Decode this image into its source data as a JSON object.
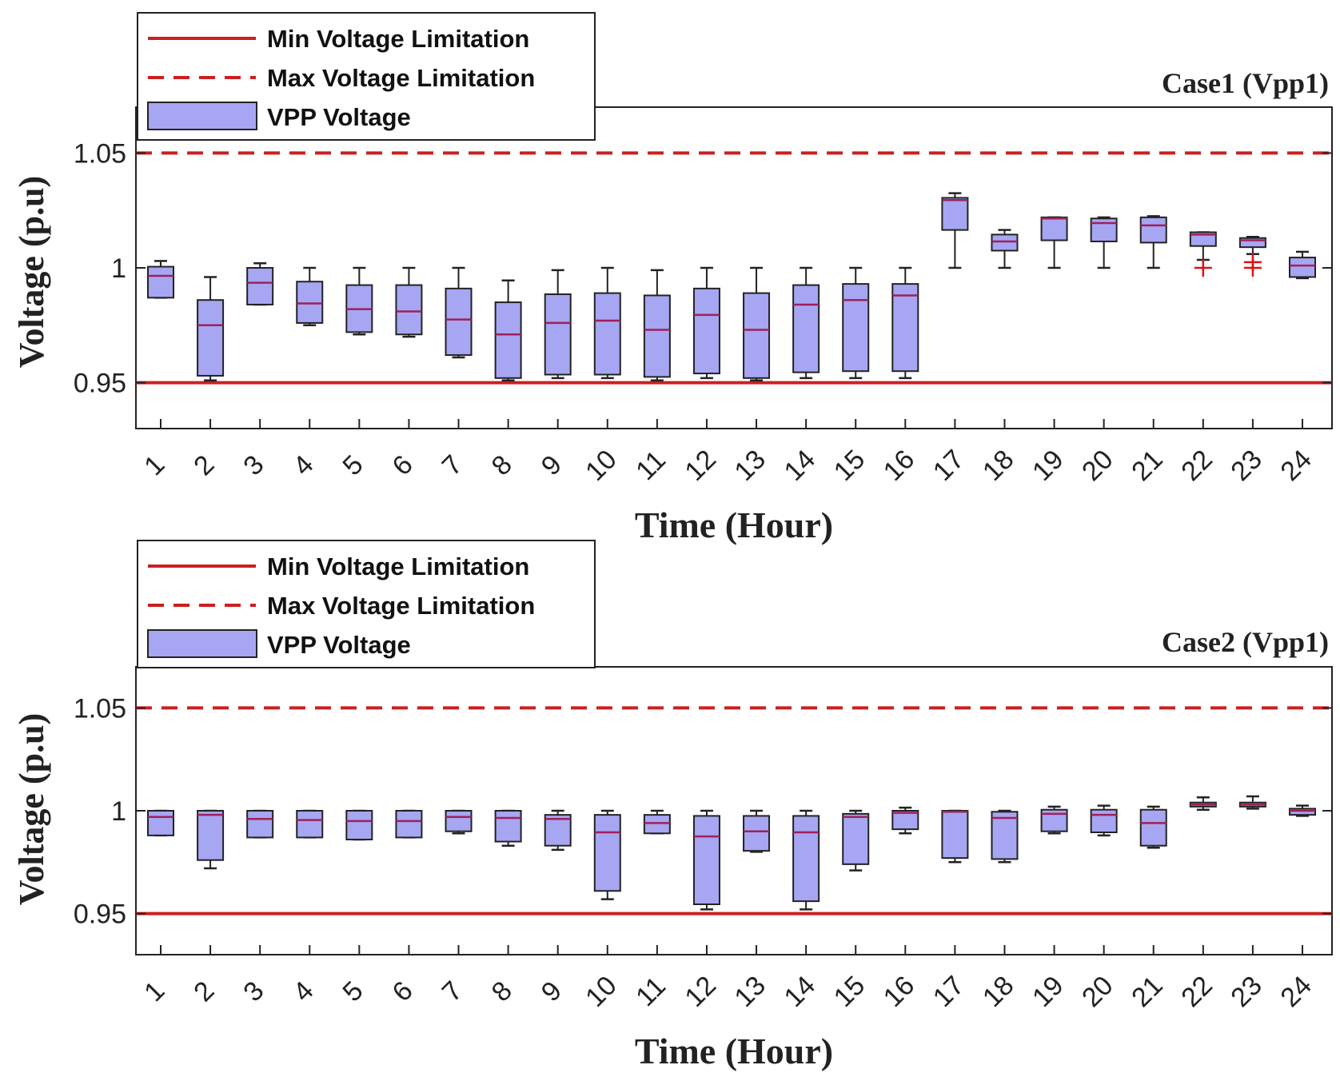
{
  "chart_data": [
    {
      "type": "box",
      "title": "Case1 (Vpp1)",
      "xlabel": "Time (Hour)",
      "ylabel": "Voltage (p.u)",
      "ylim": [
        0.93,
        1.07
      ],
      "yticks": [
        0.95,
        1,
        1.05
      ],
      "ytick_labels": [
        "0.95",
        "1",
        "1.05"
      ],
      "categories": [
        "1",
        "2",
        "3",
        "4",
        "5",
        "6",
        "7",
        "8",
        "9",
        "10",
        "11",
        "12",
        "13",
        "14",
        "15",
        "16",
        "17",
        "18",
        "19",
        "20",
        "21",
        "22",
        "23",
        "24"
      ],
      "min_limit": 0.95,
      "max_limit": 1.05,
      "legend": [
        "Min Voltage Limitation",
        "Max Voltage Limitation",
        "VPP Voltage"
      ],
      "boxes": [
        {
          "whislo": 0.987,
          "q1": 0.987,
          "med": 0.9965,
          "q3": 1.0005,
          "whishi": 1.003
        },
        {
          "whislo": 0.951,
          "q1": 0.953,
          "med": 0.975,
          "q3": 0.986,
          "whishi": 0.996
        },
        {
          "whislo": 0.984,
          "q1": 0.984,
          "med": 0.9935,
          "q3": 1.0,
          "whishi": 1.002
        },
        {
          "whislo": 0.975,
          "q1": 0.976,
          "med": 0.9845,
          "q3": 0.994,
          "whishi": 1.0
        },
        {
          "whislo": 0.971,
          "q1": 0.972,
          "med": 0.982,
          "q3": 0.9925,
          "whishi": 1.0
        },
        {
          "whislo": 0.97,
          "q1": 0.971,
          "med": 0.981,
          "q3": 0.9925,
          "whishi": 1.0
        },
        {
          "whislo": 0.961,
          "q1": 0.962,
          "med": 0.9775,
          "q3": 0.991,
          "whishi": 1.0
        },
        {
          "whislo": 0.951,
          "q1": 0.952,
          "med": 0.971,
          "q3": 0.985,
          "whishi": 0.9945
        },
        {
          "whislo": 0.952,
          "q1": 0.9535,
          "med": 0.976,
          "q3": 0.9885,
          "whishi": 0.999
        },
        {
          "whislo": 0.952,
          "q1": 0.9535,
          "med": 0.977,
          "q3": 0.989,
          "whishi": 1.0
        },
        {
          "whislo": 0.951,
          "q1": 0.9525,
          "med": 0.973,
          "q3": 0.988,
          "whishi": 0.999
        },
        {
          "whislo": 0.952,
          "q1": 0.954,
          "med": 0.9795,
          "q3": 0.991,
          "whishi": 1.0
        },
        {
          "whislo": 0.951,
          "q1": 0.952,
          "med": 0.973,
          "q3": 0.989,
          "whishi": 1.0
        },
        {
          "whislo": 0.952,
          "q1": 0.9545,
          "med": 0.984,
          "q3": 0.9925,
          "whishi": 1.0
        },
        {
          "whislo": 0.952,
          "q1": 0.955,
          "med": 0.986,
          "q3": 0.993,
          "whishi": 1.0
        },
        {
          "whislo": 0.952,
          "q1": 0.955,
          "med": 0.988,
          "q3": 0.993,
          "whishi": 1.0
        },
        {
          "whislo": 1.0,
          "q1": 1.0165,
          "med": 1.0295,
          "q3": 1.0305,
          "whishi": 1.0325
        },
        {
          "whislo": 1.0,
          "q1": 1.0075,
          "med": 1.0115,
          "q3": 1.0145,
          "whishi": 1.0165
        },
        {
          "whislo": 1.0,
          "q1": 1.012,
          "med": 1.0215,
          "q3": 1.022,
          "whishi": 1.022
        },
        {
          "whislo": 1.0,
          "q1": 1.0115,
          "med": 1.0195,
          "q3": 1.0215,
          "whishi": 1.022
        },
        {
          "whislo": 1.0,
          "q1": 1.011,
          "med": 1.0185,
          "q3": 1.022,
          "whishi": 1.0225
        },
        {
          "whislo": 1.0035,
          "q1": 1.0095,
          "med": 1.0145,
          "q3": 1.0155,
          "whishi": 1.0155,
          "outliers": [
            1.0
          ]
        },
        {
          "whislo": 1.006,
          "q1": 1.009,
          "med": 1.012,
          "q3": 1.013,
          "whishi": 1.0135,
          "outliers": [
            1.0,
            1.0025
          ]
        },
        {
          "whislo": 0.9955,
          "q1": 0.996,
          "med": 1.001,
          "q3": 1.0045,
          "whishi": 1.007
        }
      ]
    },
    {
      "type": "box",
      "title": "Case2 (Vpp1)",
      "xlabel": "Time (Hour)",
      "ylabel": "Voltage (p.u)",
      "ylim": [
        0.93,
        1.07
      ],
      "yticks": [
        0.95,
        1,
        1.05
      ],
      "ytick_labels": [
        "0.95",
        "1",
        "1.05"
      ],
      "categories": [
        "1",
        "2",
        "3",
        "4",
        "5",
        "6",
        "7",
        "8",
        "9",
        "10",
        "11",
        "12",
        "13",
        "14",
        "15",
        "16",
        "17",
        "18",
        "19",
        "20",
        "21",
        "22",
        "23",
        "24"
      ],
      "min_limit": 0.95,
      "max_limit": 1.05,
      "legend": [
        "Min Voltage Limitation",
        "Max Voltage Limitation",
        "VPP Voltage"
      ],
      "boxes": [
        {
          "whislo": 0.988,
          "q1": 0.988,
          "med": 0.997,
          "q3": 1.0,
          "whishi": 1.0
        },
        {
          "whislo": 0.972,
          "q1": 0.976,
          "med": 0.998,
          "q3": 1.0,
          "whishi": 1.0
        },
        {
          "whislo": 0.987,
          "q1": 0.987,
          "med": 0.996,
          "q3": 1.0,
          "whishi": 1.0
        },
        {
          "whislo": 0.987,
          "q1": 0.987,
          "med": 0.9955,
          "q3": 1.0,
          "whishi": 1.0
        },
        {
          "whislo": 0.986,
          "q1": 0.986,
          "med": 0.995,
          "q3": 1.0,
          "whishi": 1.0
        },
        {
          "whislo": 0.987,
          "q1": 0.987,
          "med": 0.995,
          "q3": 1.0,
          "whishi": 1.0
        },
        {
          "whislo": 0.989,
          "q1": 0.99,
          "med": 0.997,
          "q3": 1.0,
          "whishi": 1.0
        },
        {
          "whislo": 0.983,
          "q1": 0.985,
          "med": 0.9965,
          "q3": 1.0,
          "whishi": 1.0
        },
        {
          "whislo": 0.981,
          "q1": 0.983,
          "med": 0.996,
          "q3": 0.998,
          "whishi": 1.0
        },
        {
          "whislo": 0.957,
          "q1": 0.961,
          "med": 0.9895,
          "q3": 0.998,
          "whishi": 1.0
        },
        {
          "whislo": 0.989,
          "q1": 0.989,
          "med": 0.994,
          "q3": 0.998,
          "whishi": 1.0
        },
        {
          "whislo": 0.952,
          "q1": 0.9545,
          "med": 0.9875,
          "q3": 0.9975,
          "whishi": 1.0
        },
        {
          "whislo": 0.98,
          "q1": 0.9805,
          "med": 0.99,
          "q3": 0.9975,
          "whishi": 1.0
        },
        {
          "whislo": 0.952,
          "q1": 0.956,
          "med": 0.9895,
          "q3": 0.9975,
          "whishi": 1.0
        },
        {
          "whislo": 0.971,
          "q1": 0.974,
          "med": 0.997,
          "q3": 0.9985,
          "whishi": 1.0
        },
        {
          "whislo": 0.989,
          "q1": 0.991,
          "med": 0.999,
          "q3": 1.0,
          "whishi": 1.0015
        },
        {
          "whislo": 0.975,
          "q1": 0.977,
          "med": 0.9995,
          "q3": 1.0,
          "whishi": 1.0
        },
        {
          "whislo": 0.975,
          "q1": 0.9765,
          "med": 0.9965,
          "q3": 0.9995,
          "whishi": 1.0
        },
        {
          "whislo": 0.989,
          "q1": 0.99,
          "med": 0.9985,
          "q3": 1.0005,
          "whishi": 1.002
        },
        {
          "whislo": 0.988,
          "q1": 0.9895,
          "med": 0.998,
          "q3": 1.0005,
          "whishi": 1.0025
        },
        {
          "whislo": 0.982,
          "q1": 0.983,
          "med": 0.994,
          "q3": 1.0005,
          "whishi": 1.002
        },
        {
          "whislo": 1.0005,
          "q1": 1.002,
          "med": 1.003,
          "q3": 1.004,
          "whishi": 1.0065
        },
        {
          "whislo": 1.001,
          "q1": 1.002,
          "med": 1.003,
          "q3": 1.004,
          "whishi": 1.007
        },
        {
          "whislo": 0.9975,
          "q1": 0.998,
          "med": 1.0,
          "q3": 1.001,
          "whishi": 1.0025
        }
      ]
    }
  ]
}
